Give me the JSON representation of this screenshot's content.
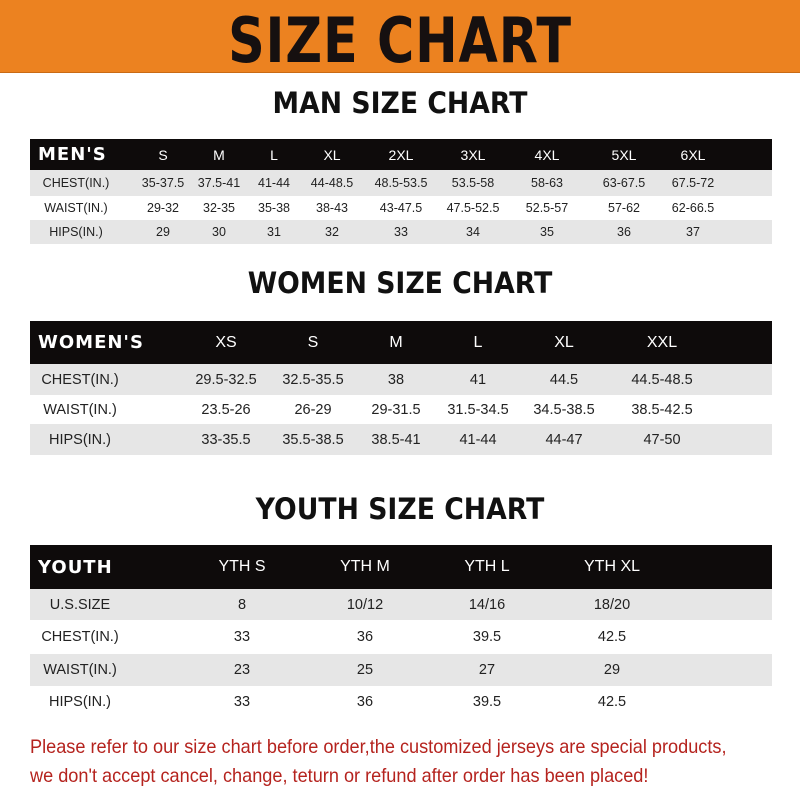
{
  "banner": {
    "title": "SIZE CHART",
    "color": "#ec8220"
  },
  "men": {
    "title": "MAN SIZE CHART",
    "header": "MEN'S",
    "sizes": [
      "S",
      "M",
      "L",
      "XL",
      "2XL",
      "3XL",
      "4XL",
      "5XL",
      "6XL"
    ],
    "rows": [
      {
        "label": "CHEST(IN.)",
        "values": [
          "35-37.5",
          "37.5-41",
          "41-44",
          "44-48.5",
          "48.5-53.5",
          "53.5-58",
          "58-63",
          "63-67.5",
          "67.5-72"
        ]
      },
      {
        "label": "WAIST(IN.)",
        "values": [
          "29-32",
          "32-35",
          "35-38",
          "38-43",
          "43-47.5",
          "47.5-52.5",
          "52.5-57",
          "57-62",
          "62-66.5"
        ]
      },
      {
        "label": "HIPS(IN.)",
        "values": [
          "29",
          "30",
          "31",
          "32",
          "33",
          "34",
          "35",
          "36",
          "37"
        ]
      }
    ]
  },
  "women": {
    "title": "WOMEN SIZE CHART",
    "header": "WOMEN'S",
    "sizes": [
      "XS",
      "S",
      "M",
      "L",
      "XL",
      "XXL"
    ],
    "rows": [
      {
        "label": "CHEST(IN.)",
        "values": [
          "29.5-32.5",
          "32.5-35.5",
          "38",
          "41",
          "44.5",
          "44.5-48.5"
        ]
      },
      {
        "label": "WAIST(IN.)",
        "values": [
          "23.5-26",
          "26-29",
          "29-31.5",
          "31.5-34.5",
          "34.5-38.5",
          "38.5-42.5"
        ]
      },
      {
        "label": "HIPS(IN.)",
        "values": [
          "33-35.5",
          "35.5-38.5",
          "38.5-41",
          "41-44",
          "44-47",
          "47-50"
        ]
      }
    ]
  },
  "youth": {
    "title": "YOUTH SIZE CHART",
    "header": "YOUTH",
    "sizes": [
      "YTH S",
      "YTH M",
      "YTH L",
      "YTH XL"
    ],
    "rows": [
      {
        "label": "U.S.SIZE",
        "values": [
          "8",
          "10/12",
          "14/16",
          "18/20"
        ]
      },
      {
        "label": "CHEST(IN.)",
        "values": [
          "33",
          "36",
          "39.5",
          "42.5"
        ]
      },
      {
        "label": "WAIST(IN.)",
        "values": [
          "23",
          "25",
          "27",
          "29"
        ]
      },
      {
        "label": "HIPS(IN.)",
        "values": [
          "33",
          "36",
          "39.5",
          "42.5"
        ]
      }
    ]
  },
  "footer": {
    "line1": "Please refer to our size chart before order,the customized jerseys are special products,",
    "line2": "we don't accept cancel, change, teturn or refund after order has been placed!",
    "color": "#b5231e"
  }
}
